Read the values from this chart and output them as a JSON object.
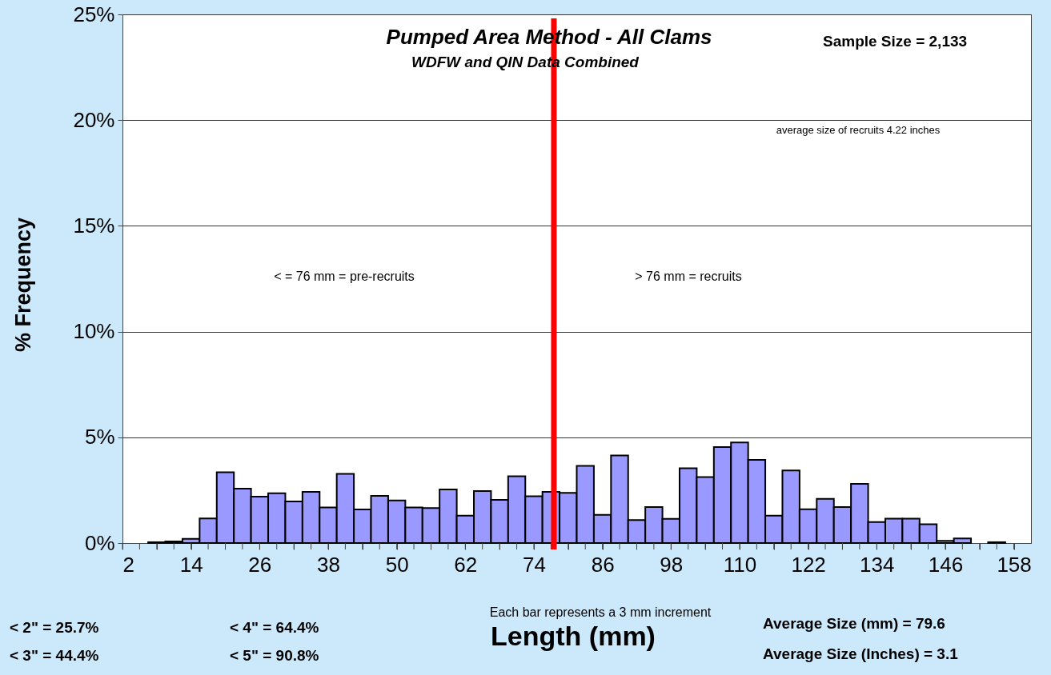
{
  "chart_data": {
    "type": "histogram",
    "title": "Pumped Area Method - All Clams",
    "subtitle": "WDFW and QIN Data Combined",
    "xlabel": "Length (mm)",
    "ylabel": "% Frequency",
    "bins": [
      6.5,
      9.5,
      12.5,
      15.5,
      18.5,
      21.5,
      24.5,
      27.5,
      30.5,
      33.5,
      36.5,
      39.5,
      42.5,
      45.5,
      48.5,
      51.5,
      54.5,
      57.5,
      60.5,
      63.5,
      66.5,
      69.5,
      72.5,
      75.5,
      78.5,
      81.5,
      84.5,
      87.5,
      90.5,
      93.5,
      96.5,
      99.5,
      102.5,
      105.5,
      108.5,
      111.5,
      114.5,
      117.5,
      120.5,
      123.5,
      126.5,
      129.5,
      132.5,
      135.5,
      138.5,
      141.5,
      144.5,
      147.5,
      150.5,
      153.5,
      156.5
    ],
    "values": [
      0.04,
      0.08,
      0.2,
      1.16,
      3.35,
      2.57,
      2.19,
      2.35,
      1.97,
      2.42,
      1.68,
      3.27,
      1.59,
      2.23,
      2.01,
      1.68,
      1.65,
      2.53,
      1.3,
      2.46,
      2.04,
      3.16,
      2.21,
      2.42,
      2.37,
      3.65,
      1.33,
      4.14,
      1.09,
      1.7,
      1.14,
      3.54,
      3.12,
      4.54,
      4.76,
      3.93,
      1.3,
      3.43,
      1.6,
      2.09,
      1.7,
      2.8,
      0.99,
      1.15,
      1.15,
      0.89,
      0.1,
      0.22,
      null,
      0.04
    ],
    "color": "#9999ff",
    "xlim": [
      2,
      161
    ],
    "xticks": [
      2,
      {
        "value": 5,
        "label": null
      },
      {
        "value": 8,
        "label": null
      },
      {
        "value": 11,
        "label": null
      },
      14,
      {
        "value": 17,
        "label": null
      },
      {
        "value": 20,
        "label": null
      },
      {
        "value": 23,
        "label": null
      },
      26,
      {
        "value": 29,
        "label": null
      },
      {
        "value": 32,
        "label": null
      },
      {
        "value": 35,
        "label": null
      },
      38,
      {
        "value": 41,
        "label": null
      },
      {
        "value": 44,
        "label": null
      },
      {
        "value": 47,
        "label": null
      },
      50,
      {
        "value": 53,
        "label": null
      },
      {
        "value": 56,
        "label": null
      },
      {
        "value": 59,
        "label": null
      },
      62,
      {
        "value": 65,
        "label": null
      },
      {
        "value": 68,
        "label": null
      },
      {
        "value": 71,
        "label": null
      },
      74,
      {
        "value": 77,
        "label": null
      },
      {
        "value": 80,
        "label": null
      },
      {
        "value": 83,
        "label": null
      },
      86,
      {
        "value": 89,
        "label": null
      },
      {
        "value": 92,
        "label": null
      },
      {
        "value": 95,
        "label": null
      },
      98,
      {
        "value": 101,
        "label": null
      },
      {
        "value": 104,
        "label": null
      },
      {
        "value": 107,
        "label": null
      },
      110,
      {
        "value": 113,
        "label": null
      },
      {
        "value": 116,
        "label": null
      },
      {
        "value": 119,
        "label": null
      },
      122,
      {
        "value": 125,
        "label": null
      },
      {
        "value": 128,
        "label": null
      },
      {
        "value": 131,
        "label": null
      },
      134,
      {
        "value": 137,
        "label": null
      },
      {
        "value": 140,
        "label": null
      },
      {
        "value": 143,
        "label": null
      },
      146,
      {
        "value": 149,
        "label": null
      },
      {
        "value": 152,
        "label": null
      },
      {
        "value": 155,
        "label": null
      },
      158
    ],
    "ylim": [
      0,
      25
    ],
    "yticks": [
      {
        "value": 0,
        "label": "0%"
      },
      {
        "value": 5,
        "label": "5%"
      },
      {
        "value": 10,
        "label": "10%"
      },
      {
        "value": 15,
        "label": "15%"
      },
      {
        "value": 20,
        "label": "20%"
      },
      {
        "value": 25,
        "label": "25%"
      }
    ],
    "grid": "y",
    "ref_lines": [
      {
        "axis": "x",
        "value": 77.5,
        "color": "#ff0000"
      }
    ],
    "annotations": [
      "Sample Size =  2,133",
      "average  size of recruits 4.22  inches",
      "< = 76 mm = pre-recruits",
      "> 76 mm  = recruits",
      "Each bar represents a 3 mm increment",
      "< 2\" =   25.7%",
      "< 3\" =   44.4%",
      "< 4\" =   64.4%",
      "< 5\" =   90.8%",
      "Average Size (mm) =        79.6",
      "Average Size (Inches) =      3.1"
    ]
  }
}
